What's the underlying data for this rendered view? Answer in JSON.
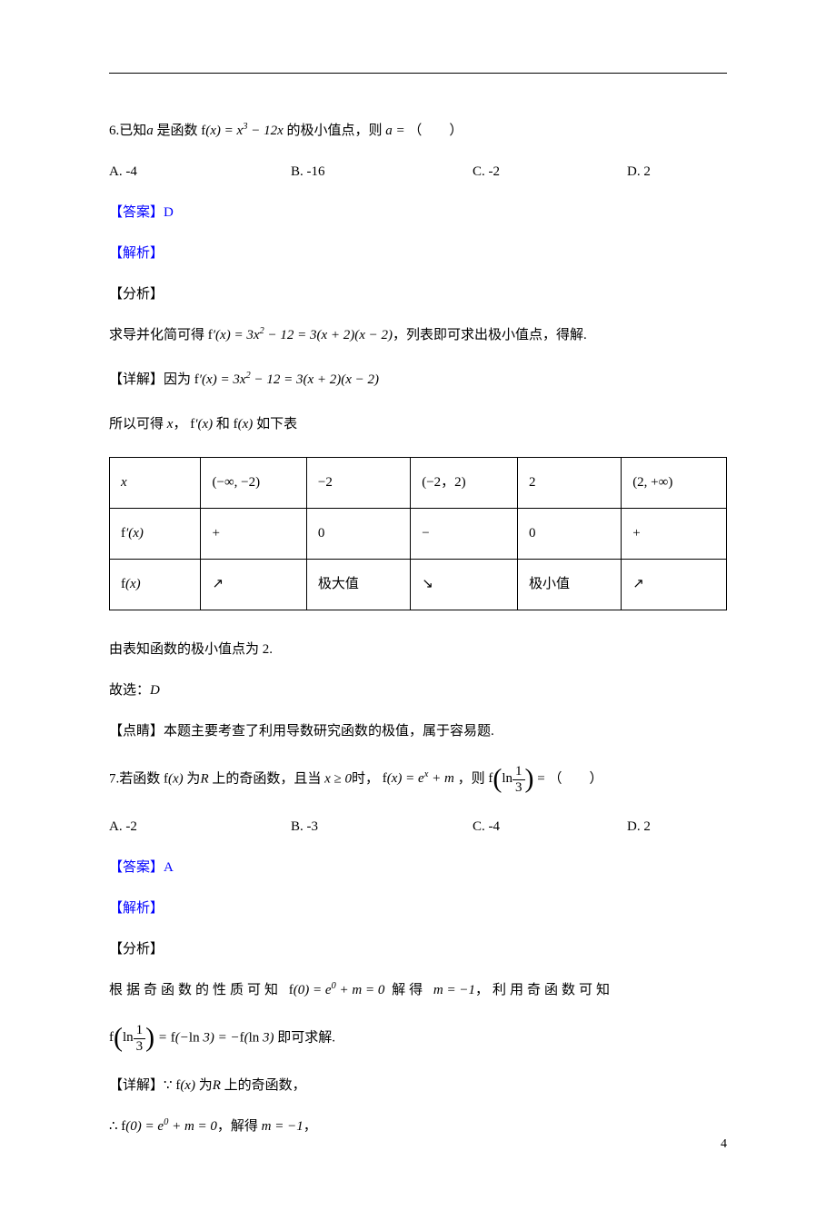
{
  "q6": {
    "prefix": "6.已知",
    "var_a": "a",
    "mid1": "是函数",
    "fn": "f(x) = x³ − 12x",
    "mid2": "的极小值点，则",
    "eq": "a =",
    "paren": "（　　）",
    "options": {
      "a": "A. -4",
      "b": "B. -16",
      "c": "C. -2",
      "d": "D. 2"
    },
    "answer_label": "【答案】",
    "answer": "D",
    "jiexi": "【解析】",
    "fenxi": "【分析】",
    "analysis_pre": "求导并化简可得",
    "analysis_expr": "f′(x) = 3x² − 12 = 3(x + 2)(x − 2)",
    "analysis_post": "，列表即可求出极小值点，得解.",
    "detail_label": "【详解】因为",
    "detail_expr": "f′(x) = 3x² − 12 = 3(x + 2)(x − 2)",
    "table_intro_pre": "所以可得",
    "table_intro_x": "x",
    "table_intro_comma": "，",
    "table_intro_fp": "f′(x)",
    "table_intro_and": "和",
    "table_intro_f": "f(x)",
    "table_intro_post": "如下表",
    "table": {
      "rows": [
        {
          "c1": "x",
          "c2": "(−∞, −2)",
          "c3": "−2",
          "c4": "(−2，2)",
          "c5": "2",
          "c6": "(2, +∞)"
        },
        {
          "c1": "f′(x)",
          "c2": "+",
          "c3": "0",
          "c4": "−",
          "c5": "0",
          "c6": "+"
        },
        {
          "c1": "f(x)",
          "c2": "↗",
          "c3": "极大值",
          "c4": "↘",
          "c5": "极小值",
          "c6": "↗"
        }
      ]
    },
    "conclusion": "由表知函数的极小值点为 2.",
    "guxuan": "故选：",
    "guxuan_ans": "D",
    "dianjing": "【点睛】本题主要考查了利用导数研究函数的极值，属于容易题."
  },
  "q7": {
    "prefix": "7.若函数",
    "fn": "f(x)",
    "mid1": "为",
    "R": "R",
    "mid2": "上的奇函数，且当",
    "cond": "x ≥ 0",
    "mid3": "时，",
    "expr": "f(x) = eˣ + m",
    "mid4": "，则",
    "target_f": "f",
    "target_ln": "ln",
    "target_num": "1",
    "target_den": "3",
    "eq": " = ",
    "paren": "（　　）",
    "options": {
      "a": "A. -2",
      "b": "B. -3",
      "c": "C. -4",
      "d": "D. 2"
    },
    "answer_label": "【答案】",
    "answer": "A",
    "jiexi": "【解析】",
    "fenxi": "【分析】",
    "analysis_pre": "根据奇函数的性质可知",
    "analysis_f0": "f(0) = e⁰ + m = 0",
    "analysis_mid": "解得",
    "analysis_m": "m = −1",
    "analysis_post": "，利用奇函数可知",
    "line2_f": "f",
    "line2_ln": "ln",
    "line2_num": "1",
    "line2_den": "3",
    "line2_eq1": " = f(−ln 3) = −f(ln 3)",
    "line2_post": "即可求解.",
    "detail_label": "【详解】",
    "because": "∵",
    "detail_fn": "f(x)",
    "detail_mid1": "为",
    "detail_R": "R",
    "detail_mid2": "上的奇函数，",
    "therefore": "∴",
    "detail_f0": "f(0) = e⁰ + m = 0",
    "detail_mid3": "，解得",
    "detail_m": "m = −1",
    "detail_post": "，"
  },
  "page_number": "4"
}
